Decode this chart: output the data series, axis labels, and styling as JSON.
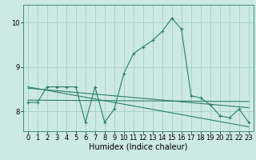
{
  "title": "",
  "xlabel": "Humidex (Indice chaleur)",
  "ylabel": "",
  "bg_color": "#cce9e4",
  "line_color": "#2e7d6e",
  "grid_color": "#aad4cc",
  "x_ticks": [
    0,
    1,
    2,
    3,
    4,
    5,
    6,
    7,
    8,
    9,
    10,
    11,
    12,
    13,
    14,
    15,
    16,
    17,
    18,
    19,
    20,
    21,
    22,
    23
  ],
  "y_ticks": [
    8,
    9,
    10
  ],
  "ylim": [
    7.55,
    10.4
  ],
  "xlim": [
    -0.5,
    23.5
  ],
  "scatter_x": [
    0,
    1,
    2,
    3,
    4,
    5,
    6,
    7,
    8,
    9,
    10,
    11,
    12,
    13,
    14,
    15,
    16,
    17,
    18,
    19,
    20,
    21,
    22,
    23
  ],
  "scatter_y": [
    8.2,
    8.2,
    8.55,
    8.55,
    8.55,
    8.55,
    7.75,
    8.55,
    7.75,
    8.05,
    8.85,
    9.3,
    9.45,
    9.6,
    9.8,
    10.1,
    9.85,
    8.35,
    8.3,
    8.15,
    7.9,
    7.85,
    8.05,
    7.75
  ],
  "line1_x": [
    0,
    23
  ],
  "line1_y": [
    8.25,
    8.22
  ],
  "line2_x": [
    0,
    23
  ],
  "line2_y": [
    8.52,
    8.08
  ],
  "line3_x": [
    0,
    23
  ],
  "line3_y": [
    8.55,
    7.65
  ],
  "font_color": "#000000",
  "font_size_tick": 6,
  "font_size_xlabel": 7
}
